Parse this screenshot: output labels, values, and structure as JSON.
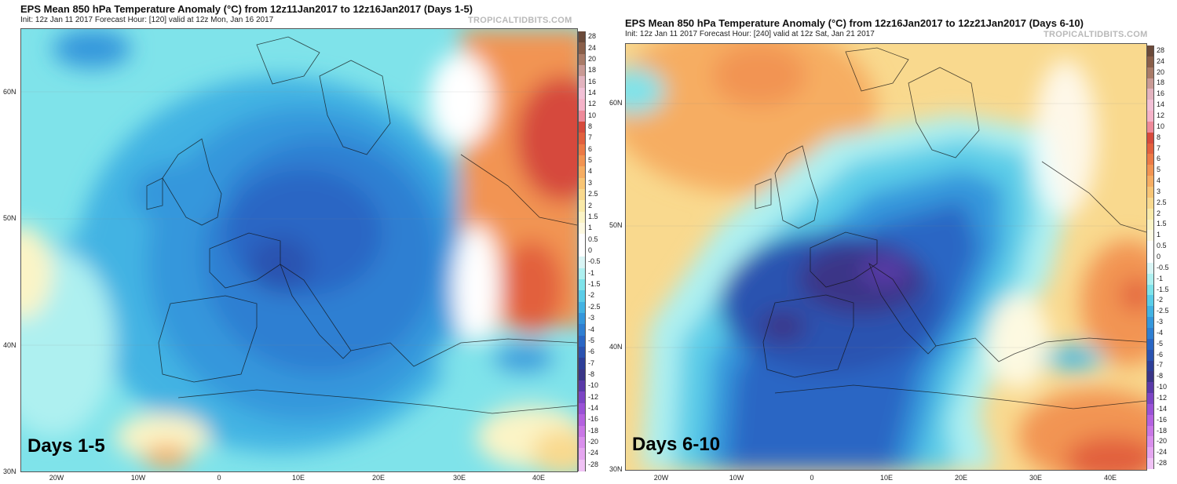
{
  "left": {
    "title": "EPS Mean 850 hPa Temperature Anomaly (°C) from 12z11Jan2017 to 12z16Jan2017 (Days 1-5)",
    "subtitle": "Init: 12z Jan 11 2017    Forecast Hour: [120]    valid at 12z Mon, Jan 16 2017",
    "source": "TROPICALTIDBITS.COM",
    "overlay_label": "Days 1-5"
  },
  "right": {
    "title": "EPS Mean 850 hPa Temperature Anomaly (°C) from 12z16Jan2017 to 12z21Jan2017 (Days 6-10)",
    "subtitle": "Init: 12z Jan 11 2017    Forecast Hour: [240]    valid at 12z Sat, Jan 21 2017",
    "source": "TROPICALTIDBITS.COM",
    "overlay_label": "Days 6-10"
  },
  "lat_labels": [
    "60N",
    "50N",
    "40N",
    "30N"
  ],
  "lon_labels": [
    "20W",
    "10W",
    "0",
    "10E",
    "20E",
    "30E",
    "40E"
  ],
  "colorbar": {
    "levels": [
      "28",
      "24",
      "20",
      "18",
      "16",
      "14",
      "12",
      "10",
      "8",
      "7",
      "6",
      "5",
      "4",
      "3",
      "2.5",
      "2",
      "1.5",
      "1",
      "0.5",
      "0",
      "-0.5",
      "-1",
      "-1.5",
      "-2",
      "-2.5",
      "-3",
      "-4",
      "-5",
      "-6",
      "-7",
      "-8",
      "-10",
      "-12",
      "-14",
      "-16",
      "-18",
      "-20",
      "-24",
      "-28"
    ],
    "colors": [
      "#6b4a3a",
      "#8a5f4a",
      "#a97b68",
      "#c99a95",
      "#e3b3bf",
      "#f2c0d6",
      "#f5b3c9",
      "#ee8a9a",
      "#d64a3c",
      "#e2603e",
      "#ec7a46",
      "#f29452",
      "#f6ad62",
      "#f8c575",
      "#f9d98e",
      "#faeaa9",
      "#fbf4c6",
      "#fdf9e1",
      "#ffffff",
      "#ffffff",
      "#d9f5f5",
      "#aef0f0",
      "#7fe3ea",
      "#5bcde8",
      "#43b3e3",
      "#3597dc",
      "#2f7fd2",
      "#2a66c4",
      "#2a52b0",
      "#2d3e98",
      "#3a3587",
      "#5a3aa8",
      "#7c45c4",
      "#9a52d6",
      "#b462e0",
      "#c977e6",
      "#d98fec",
      "#e5a6f0",
      "#f0c2f5"
    ]
  }
}
